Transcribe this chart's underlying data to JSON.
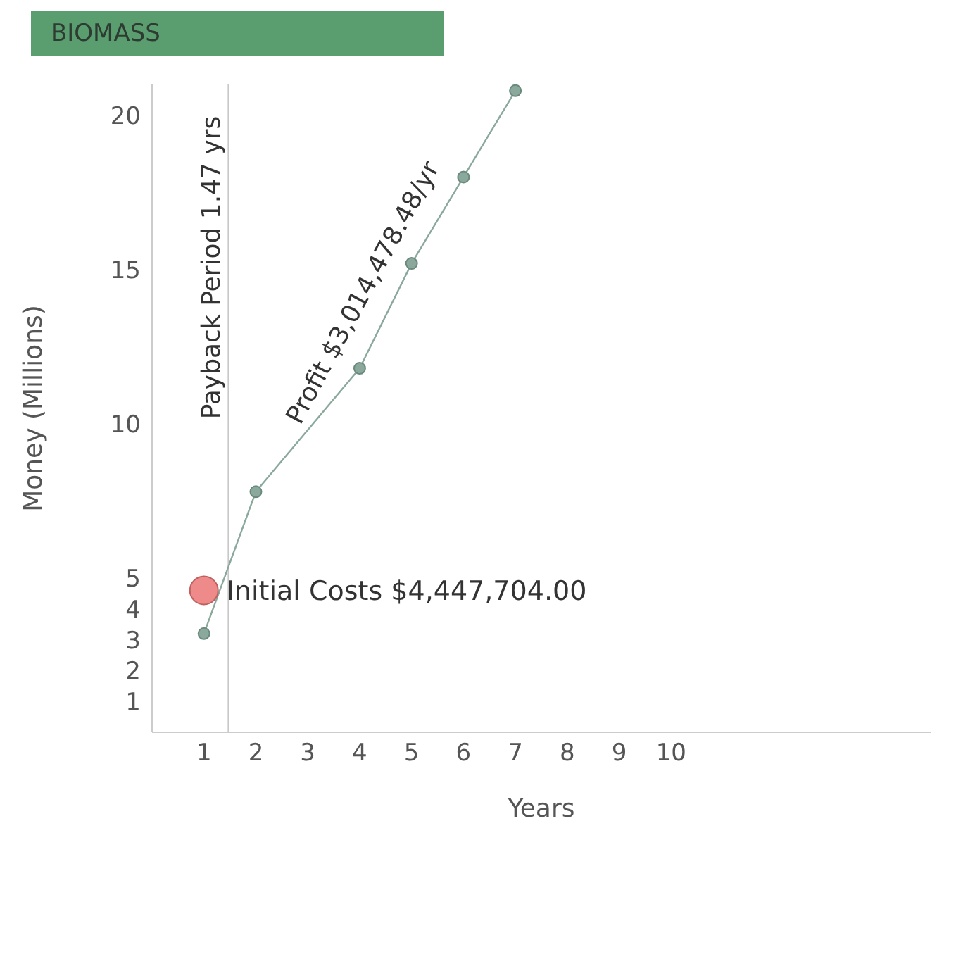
{
  "chart_data": {
    "type": "line",
    "title": "BIOMASS",
    "xlabel": "Years",
    "ylabel": "Money (Millions)",
    "x": [
      1,
      2,
      4,
      5,
      6,
      7
    ],
    "series": [
      {
        "color": "#8aa89c",
        "values": [
          3.2,
          7.8,
          11.8,
          15.2,
          18,
          20.8
        ]
      },
      {
        "type": "scatter",
        "color": "#ee8a8a",
        "x": [
          1
        ],
        "values": [
          4.6
        ]
      }
    ],
    "xlim": [
      0,
      15
    ],
    "xticks": [
      1,
      2,
      3,
      4,
      5,
      6,
      7,
      8,
      9,
      10
    ],
    "ylim": [
      0,
      21
    ],
    "yticks": [
      1,
      2,
      3,
      4,
      5,
      10,
      15,
      20
    ],
    "grid": false,
    "legend": false,
    "marker": "circle",
    "ref_lines": [
      {
        "axis": "x",
        "value": 1.47,
        "label": "Payback Period 1.47 yrs",
        "color": "#c8c8c8"
      }
    ],
    "annotations": [
      {
        "text": "Initial Costs $4,447,704.00",
        "x": 1,
        "y": 4.6
      },
      "Profit $3,014,478.48/yr"
    ]
  }
}
